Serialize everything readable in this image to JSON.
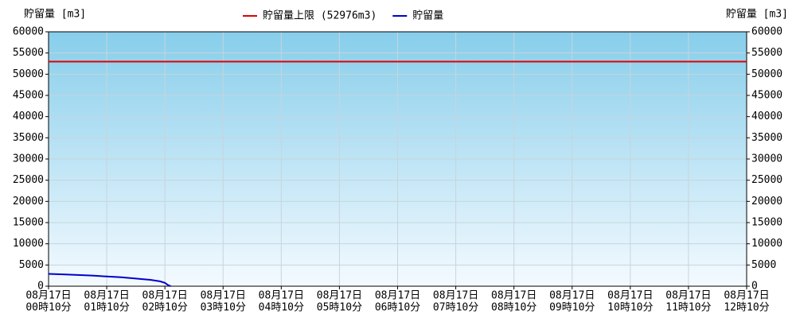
{
  "chart_data": {
    "type": "line",
    "y_label": "貯留量 [m3]",
    "y2_label": "貯留量 [m3]",
    "xlim": [
      0,
      720
    ],
    "ylim": [
      0,
      60000
    ],
    "yticks": [
      0,
      5000,
      10000,
      15000,
      20000,
      25000,
      30000,
      35000,
      40000,
      45000,
      50000,
      55000,
      60000
    ],
    "xticks": [
      {
        "value": 0,
        "label": [
          "08月17日",
          "00時10分"
        ]
      },
      {
        "value": 60,
        "label": [
          "08月17日",
          "01時10分"
        ]
      },
      {
        "value": 120,
        "label": [
          "08月17日",
          "02時10分"
        ]
      },
      {
        "value": 180,
        "label": [
          "08月17日",
          "03時10分"
        ]
      },
      {
        "value": 240,
        "label": [
          "08月17日",
          "04時10分"
        ]
      },
      {
        "value": 300,
        "label": [
          "08月17日",
          "05時10分"
        ]
      },
      {
        "value": 360,
        "label": [
          "08月17日",
          "06時10分"
        ]
      },
      {
        "value": 420,
        "label": [
          "08月17日",
          "07時10分"
        ]
      },
      {
        "value": 480,
        "label": [
          "08月17日",
          "08時10分"
        ]
      },
      {
        "value": 540,
        "label": [
          "08月17日",
          "09時10分"
        ]
      },
      {
        "value": 600,
        "label": [
          "08月17日",
          "10時10分"
        ]
      },
      {
        "value": 660,
        "label": [
          "08月17日",
          "11時10分"
        ]
      },
      {
        "value": 720,
        "label": [
          "08月17日",
          "12時10分"
        ]
      }
    ],
    "grid": true,
    "threshold": {
      "name": "貯留量上限 (52976m3)",
      "value": 52976,
      "color": "#e00000"
    },
    "series": [
      {
        "name": "貯留量",
        "color": "#0000cc",
        "x": [
          0,
          15,
          30,
          45,
          60,
          75,
          90,
          105,
          115,
          120,
          123,
          126
        ],
        "values": [
          2900,
          2800,
          2650,
          2500,
          2300,
          2100,
          1800,
          1500,
          1150,
          800,
          300,
          0
        ]
      }
    ]
  }
}
